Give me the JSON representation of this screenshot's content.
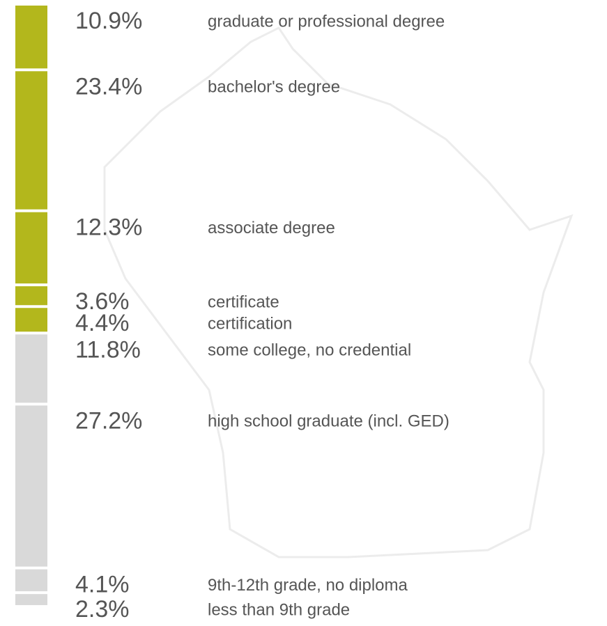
{
  "chart_data": {
    "type": "stacked_bar",
    "categories": [
      "graduate or professional degree",
      "bachelor's degree",
      "associate degree",
      "certificate",
      "certification",
      "some college, no credential",
      "high school graduate (incl. GED)",
      "9th-12th grade, no diploma",
      "less than 9th grade"
    ],
    "values": [
      10.9,
      23.4,
      12.3,
      3.6,
      4.4,
      11.8,
      27.2,
      4.1,
      2.3
    ],
    "value_labels": [
      "10.9%",
      "23.4%",
      "12.3%",
      "3.6%",
      "4.4%",
      "11.8%",
      "27.2%",
      "4.1%",
      "2.3%"
    ],
    "colors": [
      "#b3b71c",
      "#b3b71c",
      "#b3b71c",
      "#b3b71c",
      "#b3b71c",
      "#d9d9d9",
      "#d9d9d9",
      "#d9d9d9",
      "#d9d9d9"
    ],
    "ylim": [
      0,
      100
    ]
  }
}
